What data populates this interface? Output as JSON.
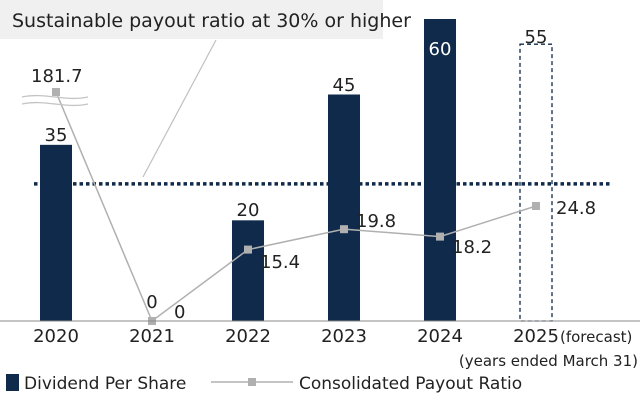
{
  "chart_data": {
    "type": "bar",
    "annotation": "Sustainable payout ratio at 30% or higher",
    "categories": [
      "2020",
      "2021",
      "2022",
      "2023",
      "2024",
      "2025"
    ],
    "forecast_label": "(forecast)",
    "x_unit_label": "(years ended March 31)",
    "series": [
      {
        "name": "Dividend Per Share",
        "type": "bar",
        "values": [
          35,
          0,
          20,
          45,
          60,
          55
        ],
        "forecast_index": 5,
        "color": "#0f2a4a"
      },
      {
        "name": "Consolidated Payout Ratio",
        "type": "line",
        "values": [
          181.7,
          0,
          15.4,
          19.8,
          18.2,
          24.8
        ],
        "color": "#b0b0b0"
      }
    ],
    "reference_line": {
      "value": 30,
      "style": "dotted",
      "color": "#0f2a4a"
    },
    "legend_position": "bottom",
    "grid": false
  }
}
